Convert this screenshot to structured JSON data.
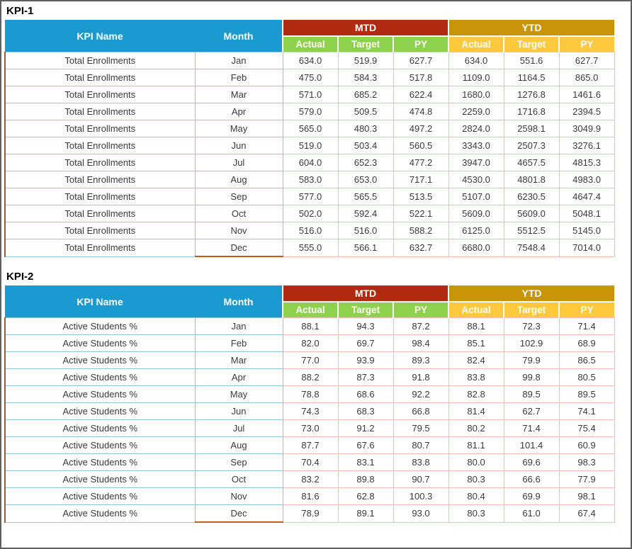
{
  "colors": {
    "header_blue": "#1A9AD0",
    "mtd_red": "#B02B10",
    "ytd_gold": "#C99409",
    "mtd_sub_green": "#8ED14D",
    "ytd_sub_yellow": "#FFC93E",
    "name_border_blue": "#8FCAE2",
    "value_border_pink": "#F3BEAC",
    "table_left_brown": "#9B5A35",
    "last_row_orange": "#C55A11"
  },
  "columns": {
    "kpi_name": "KPI Name",
    "month": "Month",
    "mtd": "MTD",
    "ytd": "YTD",
    "actual": "Actual",
    "target": "Target",
    "py": "PY"
  },
  "tables": [
    {
      "title": "KPI-1",
      "rows": [
        [
          "Total Enrollments",
          "Jan",
          "634.0",
          "519.9",
          "627.7",
          "634.0",
          "551.6",
          "627.7"
        ],
        [
          "Total Enrollments",
          "Feb",
          "475.0",
          "584.3",
          "517.8",
          "1109.0",
          "1164.5",
          "865.0"
        ],
        [
          "Total Enrollments",
          "Mar",
          "571.0",
          "685.2",
          "622.4",
          "1680.0",
          "1276.8",
          "1461.6"
        ],
        [
          "Total Enrollments",
          "Apr",
          "579.0",
          "509.5",
          "474.8",
          "2259.0",
          "1716.8",
          "2394.5"
        ],
        [
          "Total Enrollments",
          "May",
          "565.0",
          "480.3",
          "497.2",
          "2824.0",
          "2598.1",
          "3049.9"
        ],
        [
          "Total Enrollments",
          "Jun",
          "519.0",
          "503.4",
          "560.5",
          "3343.0",
          "2507.3",
          "3276.1"
        ],
        [
          "Total Enrollments",
          "Jul",
          "604.0",
          "652.3",
          "477.2",
          "3947.0",
          "4657.5",
          "4815.3"
        ],
        [
          "Total Enrollments",
          "Aug",
          "583.0",
          "653.0",
          "717.1",
          "4530.0",
          "4801.8",
          "4983.0"
        ],
        [
          "Total Enrollments",
          "Sep",
          "577.0",
          "565.5",
          "513.5",
          "5107.0",
          "6230.5",
          "4647.4"
        ],
        [
          "Total Enrollments",
          "Oct",
          "502.0",
          "592.4",
          "522.1",
          "5609.0",
          "5609.0",
          "5048.1"
        ],
        [
          "Total Enrollments",
          "Nov",
          "516.0",
          "516.0",
          "588.2",
          "6125.0",
          "5512.5",
          "5145.0"
        ],
        [
          "Total Enrollments",
          "Dec",
          "555.0",
          "566.1",
          "632.7",
          "6680.0",
          "7548.4",
          "7014.0"
        ]
      ]
    },
    {
      "title": "KPI-2",
      "rows": [
        [
          "Active Students %",
          "Jan",
          "88.1",
          "94.3",
          "87.2",
          "88.1",
          "72.3",
          "71.4"
        ],
        [
          "Active Students %",
          "Feb",
          "82.0",
          "69.7",
          "98.4",
          "85.1",
          "102.9",
          "68.9"
        ],
        [
          "Active Students %",
          "Mar",
          "77.0",
          "93.9",
          "89.3",
          "82.4",
          "79.9",
          "86.5"
        ],
        [
          "Active Students %",
          "Apr",
          "88.2",
          "87.3",
          "91.8",
          "83.8",
          "99.8",
          "80.5"
        ],
        [
          "Active Students %",
          "May",
          "78.8",
          "68.6",
          "92.2",
          "82.8",
          "89.5",
          "89.5"
        ],
        [
          "Active Students %",
          "Jun",
          "74.3",
          "68.3",
          "66.8",
          "81.4",
          "62.7",
          "74.1"
        ],
        [
          "Active Students %",
          "Jul",
          "73.0",
          "91.2",
          "79.5",
          "80.2",
          "71.4",
          "75.4"
        ],
        [
          "Active Students %",
          "Aug",
          "87.7",
          "67.6",
          "80.7",
          "81.1",
          "101.4",
          "60.9"
        ],
        [
          "Active Students %",
          "Sep",
          "70.4",
          "83.1",
          "83.8",
          "80.0",
          "69.6",
          "98.3"
        ],
        [
          "Active Students %",
          "Oct",
          "83.2",
          "89.8",
          "90.7",
          "80.3",
          "66.6",
          "77.9"
        ],
        [
          "Active Students %",
          "Nov",
          "81.6",
          "62.8",
          "100.3",
          "80.4",
          "69.9",
          "98.1"
        ],
        [
          "Active Students %",
          "Dec",
          "78.9",
          "89.1",
          "93.0",
          "80.3",
          "61.0",
          "67.4"
        ]
      ]
    }
  ]
}
